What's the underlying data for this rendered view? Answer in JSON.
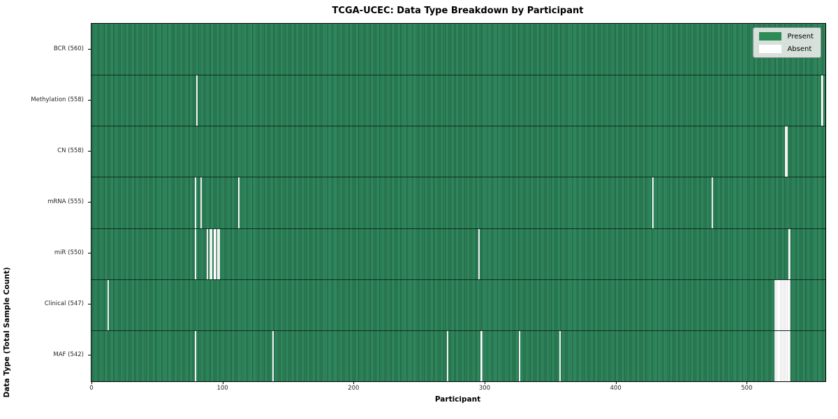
{
  "chart_data": {
    "type": "heatmap",
    "title": "TCGA-UCEC: Data Type Breakdown by Participant",
    "xlabel": "Participant",
    "ylabel": "Data Type (Total Sample Count)",
    "x_range": [
      0,
      560
    ],
    "x_ticks": [
      0,
      100,
      200,
      300,
      400,
      500
    ],
    "grid": false,
    "legend_position": "upper right",
    "legend_items": [
      {
        "label": "Present",
        "color": "#2e8b57"
      },
      {
        "label": "Absent",
        "color": "#ffffff"
      }
    ],
    "colors": {
      "present": "#2e8b57",
      "present_edge": "#1d5e3c",
      "absent": "#ffffff"
    },
    "total_participants": 560,
    "rows": [
      {
        "label": "BCR",
        "total": 560,
        "absent": []
      },
      {
        "label": "Methylation",
        "total": 558,
        "absent": [
          80,
          557
        ]
      },
      {
        "label": "CN",
        "total": 558,
        "absent": [
          529,
          530
        ]
      },
      {
        "label": "mRNA",
        "total": 555,
        "absent": [
          79,
          83,
          112,
          428,
          473
        ]
      },
      {
        "label": "miR",
        "total": 550,
        "absent": [
          79,
          88,
          90,
          91,
          93,
          94,
          96,
          97,
          295,
          532
        ]
      },
      {
        "label": "Clinical",
        "total": 547,
        "absent": [
          12,
          521,
          522,
          523,
          524,
          525,
          526,
          527,
          528,
          529,
          530,
          531,
          532
        ]
      },
      {
        "label": "MAF",
        "total": 542,
        "absent": [
          79,
          138,
          271,
          297,
          326,
          357,
          521,
          522,
          523,
          524,
          525,
          526,
          527,
          528,
          529,
          530,
          531,
          532
        ]
      }
    ]
  }
}
